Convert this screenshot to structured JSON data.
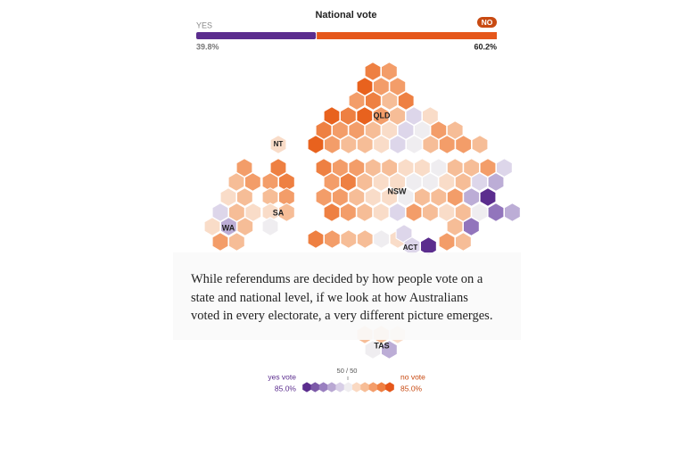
{
  "chart_data": {
    "type": "bar",
    "title": "National vote",
    "orientation": "horizontal",
    "stacked": true,
    "series": [
      {
        "name": "YES",
        "color": "#5b2d8e",
        "values": [
          39.8
        ],
        "value_labels": [
          "39.8%"
        ]
      },
      {
        "name": "NO",
        "color": "#e5571b",
        "values": [
          60.2
        ],
        "value_labels": [
          "60.2%"
        ]
      }
    ],
    "xlim": [
      0,
      100
    ]
  },
  "map": {
    "labels": [
      "QLD",
      "NT",
      "WA",
      "SA",
      "NSW",
      "ACT",
      "TAS"
    ]
  },
  "note": "While referendums are decided by how people vote on a state and national level, if we look at how Australians voted in every electorate, a very different picture emerges.",
  "legend": {
    "yes_label": "yes vote",
    "yes_value": "85.0%",
    "mid_label": "50 / 50",
    "no_label": "no vote",
    "no_value": "85.0%"
  }
}
